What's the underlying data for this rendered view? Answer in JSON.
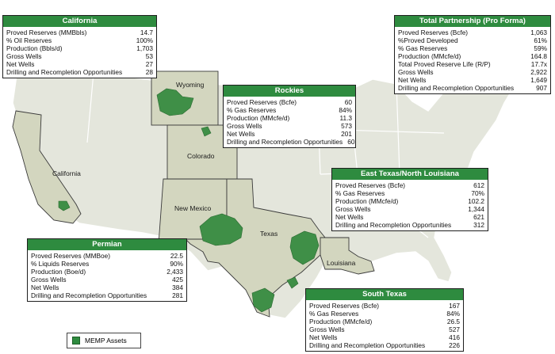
{
  "map": {
    "state_labels": {
      "wyoming": "Wyoming",
      "colorado": "Colorado",
      "california": "California",
      "new_mexico": "New Mexico",
      "texas": "Texas",
      "louisiana": "Louisiana"
    },
    "colors": {
      "land": "#e4e6dc",
      "highlight_state": "#d3d6bf",
      "asset": "#3f8f47",
      "header": "#2e8b3f"
    }
  },
  "legend": {
    "label": "MEMP Assets"
  },
  "california": {
    "title": "California",
    "rows": [
      {
        "label": "Proved Reserves (MMBbls)",
        "value": "14.7"
      },
      {
        "label": "% Oil Reserves",
        "value": "100%"
      },
      {
        "label": "Production (Bbls/d)",
        "value": "1,703"
      },
      {
        "label": "Gross Wells",
        "value": "53"
      },
      {
        "label": "Net Wells",
        "value": "27"
      },
      {
        "label": "Drilling and Recompletion Opportunities",
        "value": "28"
      }
    ]
  },
  "rockies": {
    "title": "Rockies",
    "rows": [
      {
        "label": "Proved Reserves (Bcfe)",
        "value": "60"
      },
      {
        "label": "% Gas Reserves",
        "value": "84%"
      },
      {
        "label": "Production (MMcfe/d)",
        "value": "11.3"
      },
      {
        "label": "Gross Wells",
        "value": "573"
      },
      {
        "label": "Net Wells",
        "value": "201"
      },
      {
        "label": "Drilling and Recompletion Opportunities",
        "value": "60"
      }
    ]
  },
  "total": {
    "title": "Total Partnership (Pro Forma)",
    "rows": [
      {
        "label": "Proved Reserves (Bcfe)",
        "value": "1,063"
      },
      {
        "label": "%Proved Developed",
        "value": "61%"
      },
      {
        "label": "% Gas Reserves",
        "value": "59%"
      },
      {
        "label": "Production (MMcfe/d)",
        "value": "164.8"
      },
      {
        "label": "Total Proved Reserve Life (R/P)",
        "value": "17.7x"
      },
      {
        "label": "Gross Wells",
        "value": "2,922"
      },
      {
        "label": "Net Wells",
        "value": "1,649"
      },
      {
        "label": "Drilling and Recompletion Opportunities",
        "value": "907"
      }
    ]
  },
  "east_texas": {
    "title": "East Texas/North Louisiana",
    "rows": [
      {
        "label": "Proved Reserves (Bcfe)",
        "value": "612"
      },
      {
        "label": "% Gas Reserves",
        "value": "70%"
      },
      {
        "label": "Production (MMcfe/d)",
        "value": "102.2"
      },
      {
        "label": "Gross Wells",
        "value": "1,344"
      },
      {
        "label": "Net Wells",
        "value": "621"
      },
      {
        "label": "Drilling and Recompletion Opportunities",
        "value": "312"
      }
    ]
  },
  "permian": {
    "title": "Permian",
    "rows": [
      {
        "label": "Proved Reserves (MMBoe)",
        "value": "22.5"
      },
      {
        "label": "% Liquids Reserves",
        "value": "90%"
      },
      {
        "label": "Production (Boe/d)",
        "value": "2,433"
      },
      {
        "label": "Gross Wells",
        "value": "425"
      },
      {
        "label": "Net Wells",
        "value": "384"
      },
      {
        "label": "Drilling and Recompletion Opportunities",
        "value": "281"
      }
    ]
  },
  "south_texas": {
    "title": "South Texas",
    "rows": [
      {
        "label": "Proved Reserves (Bcfe)",
        "value": "167"
      },
      {
        "label": "% Gas Reserves",
        "value": "84%"
      },
      {
        "label": "Production (MMcfe/d)",
        "value": "26.5"
      },
      {
        "label": "Gross Wells",
        "value": "527"
      },
      {
        "label": "Net Wells",
        "value": "416"
      },
      {
        "label": "Drilling and Recompletion Opportunities",
        "value": "226"
      }
    ]
  }
}
